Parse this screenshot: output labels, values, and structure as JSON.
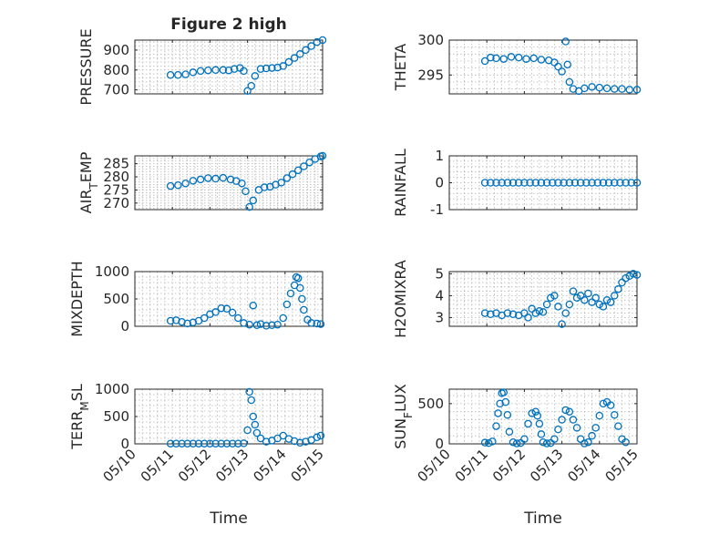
{
  "chart_data": [
    {
      "type": "scatter",
      "title": "Figure 2 high",
      "ylabel": "PRESSURE",
      "xlabel": "",
      "ylim": [
        680,
        950
      ],
      "yticks": [
        700,
        800,
        900
      ],
      "ytick_labels": [
        "700",
        "800",
        "900"
      ],
      "xlim": [
        0,
        5
      ],
      "xticks": [
        0,
        1,
        2,
        3,
        4,
        5
      ],
      "xtick_labels": [
        "05/10",
        "05/11",
        "05/12",
        "05/13",
        "05/14",
        "05/15"
      ],
      "show_xtick_labels": false,
      "grid": true,
      "color": "#0072BD",
      "series": [
        {
          "x": [
            0.95,
            1.15,
            1.35,
            1.55,
            1.75,
            1.95,
            2.15,
            2.35,
            2.5,
            2.65,
            2.8,
            2.9,
            3.0,
            3.1,
            3.2,
            3.35,
            3.5,
            3.65,
            3.8,
            3.95,
            4.1,
            4.25,
            4.4,
            4.55,
            4.7,
            4.85,
            5.0
          ],
          "y": [
            775,
            775,
            778,
            788,
            795,
            798,
            800,
            800,
            798,
            805,
            810,
            795,
            695,
            720,
            770,
            805,
            808,
            810,
            812,
            820,
            840,
            860,
            880,
            900,
            920,
            940,
            955
          ]
        }
      ]
    },
    {
      "type": "scatter",
      "ylabel": "THETA",
      "xlabel": "",
      "ylim": [
        292.3,
        300.0
      ],
      "yticks": [
        295,
        300
      ],
      "ytick_labels": [
        "295",
        "300"
      ],
      "xlim": [
        0,
        5
      ],
      "xticks": [
        0,
        1,
        2,
        3,
        4,
        5
      ],
      "xtick_labels": [
        "05/10",
        "05/11",
        "05/12",
        "05/13",
        "05/14",
        "05/15"
      ],
      "show_xtick_labels": false,
      "grid": true,
      "color": "#0072BD",
      "series": [
        {
          "x": [
            0.95,
            1.1,
            1.25,
            1.45,
            1.65,
            1.85,
            2.05,
            2.25,
            2.45,
            2.65,
            2.8,
            2.9,
            3.0,
            3.1,
            3.15,
            3.2,
            3.3,
            3.45,
            3.6,
            3.8,
            4.0,
            4.2,
            4.4,
            4.6,
            4.8,
            5.0
          ],
          "y": [
            297.0,
            297.5,
            297.4,
            297.3,
            297.6,
            297.5,
            297.3,
            297.4,
            297.2,
            297.1,
            296.8,
            296.2,
            295.5,
            299.8,
            296.5,
            294.0,
            293.0,
            292.7,
            293.1,
            293.3,
            293.2,
            293.1,
            293.0,
            293.0,
            292.9,
            292.9
          ]
        }
      ]
    },
    {
      "type": "scatter",
      "ylabel": "AIR_TEMP",
      "xlabel": "",
      "ylim": [
        267.5,
        288.0
      ],
      "yticks": [
        270,
        275,
        280,
        285
      ],
      "ytick_labels": [
        "270",
        "275",
        "280",
        "285"
      ],
      "xlim": [
        0,
        5
      ],
      "xticks": [
        0,
        1,
        2,
        3,
        4,
        5
      ],
      "xtick_labels": [
        "05/10",
        "05/11",
        "05/12",
        "05/13",
        "05/14",
        "05/15"
      ],
      "show_xtick_labels": false,
      "grid": true,
      "color": "#0072BD",
      "series": [
        {
          "x": [
            0.95,
            1.15,
            1.35,
            1.55,
            1.75,
            1.95,
            2.15,
            2.35,
            2.55,
            2.7,
            2.85,
            2.95,
            3.05,
            3.15,
            3.3,
            3.45,
            3.6,
            3.75,
            3.9,
            4.05,
            4.2,
            4.35,
            4.5,
            4.65,
            4.8,
            4.95,
            5.0
          ],
          "y": [
            276.5,
            276.8,
            277.5,
            278.5,
            279.0,
            279.5,
            279.3,
            279.6,
            279.0,
            278.4,
            277.5,
            274.5,
            268.5,
            271.0,
            275.0,
            276.0,
            276.2,
            277.0,
            277.8,
            279.5,
            281.0,
            282.5,
            284.0,
            285.5,
            286.8,
            287.8,
            288.0
          ]
        }
      ]
    },
    {
      "type": "scatter",
      "ylabel": "RAINFALL",
      "xlabel": "",
      "ylim": [
        -1,
        1
      ],
      "yticks": [
        -1,
        0,
        1
      ],
      "ytick_labels": [
        "-1",
        "0",
        "1"
      ],
      "xlim": [
        0,
        5
      ],
      "xticks": [
        0,
        1,
        2,
        3,
        4,
        5
      ],
      "xtick_labels": [
        "05/10",
        "05/11",
        "05/12",
        "05/13",
        "05/14",
        "05/15"
      ],
      "show_xtick_labels": false,
      "grid": true,
      "color": "#0072BD",
      "series": [
        {
          "x": [
            0.95,
            1.1,
            1.25,
            1.4,
            1.55,
            1.7,
            1.85,
            2.0,
            2.15,
            2.3,
            2.45,
            2.6,
            2.75,
            2.9,
            3.05,
            3.2,
            3.35,
            3.5,
            3.65,
            3.8,
            3.95,
            4.1,
            4.25,
            4.4,
            4.55,
            4.7,
            4.85,
            5.0
          ],
          "y": [
            0,
            0,
            0,
            0,
            0,
            0,
            0,
            0,
            0,
            0,
            0,
            0,
            0,
            0,
            0,
            0,
            0,
            0,
            0,
            0,
            0,
            0,
            0,
            0,
            0,
            0,
            0,
            0
          ]
        }
      ]
    },
    {
      "type": "scatter",
      "ylabel": "MIXDEPTH",
      "xlabel": "",
      "ylim": [
        0,
        1000
      ],
      "yticks": [
        0,
        500,
        1000
      ],
      "ytick_labels": [
        "0",
        "500",
        "1000"
      ],
      "xlim": [
        0,
        5
      ],
      "xticks": [
        0,
        1,
        2,
        3,
        4,
        5
      ],
      "xtick_labels": [
        "05/10",
        "05/11",
        "05/12",
        "05/13",
        "05/14",
        "05/15"
      ],
      "show_xtick_labels": false,
      "grid": true,
      "color": "#0072BD",
      "series": [
        {
          "x": [
            0.95,
            1.1,
            1.25,
            1.4,
            1.55,
            1.7,
            1.85,
            2.0,
            2.15,
            2.3,
            2.45,
            2.6,
            2.75,
            2.9,
            3.05,
            3.15,
            3.25,
            3.35,
            3.5,
            3.65,
            3.8,
            3.95,
            4.05,
            4.15,
            4.25,
            4.3,
            4.35,
            4.4,
            4.45,
            4.5,
            4.6,
            4.7,
            4.85,
            4.95
          ],
          "y": [
            100,
            110,
            80,
            50,
            70,
            100,
            150,
            220,
            260,
            330,
            320,
            250,
            150,
            60,
            30,
            380,
            20,
            40,
            10,
            20,
            30,
            150,
            400,
            600,
            750,
            900,
            880,
            700,
            500,
            300,
            120,
            60,
            50,
            40
          ]
        }
      ]
    },
    {
      "type": "scatter",
      "ylabel": "H2OMIXRA",
      "xlabel": "",
      "ylim": [
        2.6,
        5.1
      ],
      "yticks": [
        3,
        4,
        5
      ],
      "ytick_labels": [
        "3",
        "4",
        "5"
      ],
      "xlim": [
        0,
        5
      ],
      "xticks": [
        0,
        1,
        2,
        3,
        4,
        5
      ],
      "xtick_labels": [
        "05/10",
        "05/11",
        "05/12",
        "05/13",
        "05/14",
        "05/15"
      ],
      "show_xtick_labels": false,
      "grid": true,
      "color": "#0072BD",
      "series": [
        {
          "x": [
            0.95,
            1.1,
            1.25,
            1.4,
            1.55,
            1.7,
            1.85,
            2.0,
            2.1,
            2.2,
            2.3,
            2.4,
            2.5,
            2.6,
            2.7,
            2.8,
            2.9,
            3.0,
            3.1,
            3.2,
            3.3,
            3.4,
            3.5,
            3.6,
            3.7,
            3.8,
            3.9,
            4.0,
            4.1,
            4.2,
            4.3,
            4.4,
            4.5,
            4.6,
            4.7,
            4.8,
            4.9,
            5.0
          ],
          "y": [
            3.2,
            3.15,
            3.2,
            3.1,
            3.2,
            3.15,
            3.1,
            3.2,
            3.0,
            3.4,
            3.2,
            3.3,
            3.25,
            3.6,
            3.9,
            4.0,
            3.5,
            2.7,
            3.2,
            3.6,
            4.2,
            3.9,
            4.0,
            3.8,
            4.1,
            3.7,
            3.9,
            3.6,
            3.5,
            3.8,
            3.7,
            4.0,
            4.3,
            4.6,
            4.8,
            4.9,
            5.0,
            4.95
          ]
        }
      ]
    },
    {
      "type": "scatter",
      "ylabel": "TERR_MSL",
      "xlabel": "Time",
      "ylim": [
        0,
        1000
      ],
      "yticks": [
        0,
        500,
        1000
      ],
      "ytick_labels": [
        "0",
        "500",
        "1000"
      ],
      "xlim": [
        0,
        5
      ],
      "xticks": [
        0,
        1,
        2,
        3,
        4,
        5
      ],
      "xtick_labels": [
        "05/10",
        "05/11",
        "05/12",
        "05/13",
        "05/14",
        "05/15"
      ],
      "show_xtick_labels": true,
      "grid": true,
      "color": "#0072BD",
      "series": [
        {
          "x": [
            0.95,
            1.1,
            1.25,
            1.4,
            1.55,
            1.7,
            1.85,
            2.0,
            2.15,
            2.3,
            2.45,
            2.6,
            2.75,
            2.9,
            3.0,
            3.05,
            3.1,
            3.15,
            3.2,
            3.25,
            3.35,
            3.5,
            3.65,
            3.8,
            3.95,
            4.1,
            4.25,
            4.4,
            4.55,
            4.7,
            4.85,
            4.95
          ],
          "y": [
            5,
            5,
            5,
            5,
            5,
            5,
            5,
            5,
            5,
            5,
            5,
            5,
            5,
            10,
            250,
            950,
            800,
            500,
            350,
            200,
            100,
            40,
            60,
            100,
            150,
            90,
            50,
            20,
            40,
            70,
            120,
            150
          ]
        }
      ]
    },
    {
      "type": "scatter",
      "ylabel": "SUN_FLUX",
      "xlabel": "Time",
      "ylim": [
        0,
        680
      ],
      "yticks": [
        0,
        500
      ],
      "ytick_labels": [
        "0",
        "500"
      ],
      "xlim": [
        0,
        5
      ],
      "xticks": [
        0,
        1,
        2,
        3,
        4,
        5
      ],
      "xtick_labels": [
        "05/10",
        "05/11",
        "05/12",
        "05/13",
        "05/14",
        "05/15"
      ],
      "show_xtick_labels": true,
      "grid": true,
      "color": "#0072BD",
      "series": [
        {
          "x": [
            0.95,
            1.05,
            1.15,
            1.25,
            1.3,
            1.35,
            1.4,
            1.45,
            1.5,
            1.55,
            1.6,
            1.7,
            1.8,
            1.9,
            2.0,
            2.1,
            2.2,
            2.3,
            2.35,
            2.4,
            2.45,
            2.5,
            2.6,
            2.7,
            2.8,
            2.9,
            3.0,
            3.1,
            3.2,
            3.3,
            3.4,
            3.5,
            3.6,
            3.7,
            3.8,
            3.9,
            4.0,
            4.1,
            4.2,
            4.3,
            4.4,
            4.5,
            4.6,
            4.7
          ],
          "y": [
            15,
            10,
            30,
            220,
            380,
            500,
            630,
            640,
            520,
            360,
            150,
            20,
            5,
            10,
            60,
            250,
            380,
            400,
            350,
            250,
            120,
            20,
            5,
            10,
            60,
            180,
            300,
            420,
            400,
            300,
            200,
            60,
            5,
            20,
            100,
            200,
            350,
            500,
            520,
            480,
            360,
            220,
            60,
            20
          ]
        }
      ]
    }
  ]
}
